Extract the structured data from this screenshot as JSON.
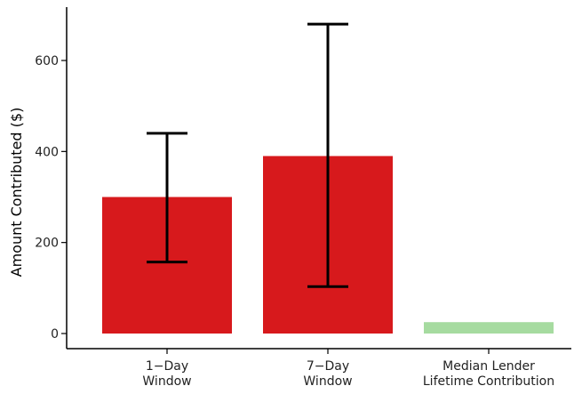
{
  "chart_data": {
    "type": "bar",
    "title": "",
    "xlabel": "",
    "ylabel": "Amount Contributed ($)",
    "ylim": [
      0,
      700
    ],
    "yticks": [
      0,
      200,
      400,
      600
    ],
    "grid": false,
    "categories": [
      {
        "lines": [
          "1−Day",
          "Window"
        ],
        "value": 300,
        "error_low": 157,
        "error_high": 440,
        "color": "#d7191c"
      },
      {
        "lines": [
          "7−Day",
          "Window"
        ],
        "value": 390,
        "error_low": 103,
        "error_high": 680,
        "color": "#d7191c"
      },
      {
        "lines": [
          "Median Lender",
          "Lifetime Contribution"
        ],
        "value": 25,
        "error_low": null,
        "error_high": null,
        "color": "#a6dba0"
      }
    ]
  }
}
